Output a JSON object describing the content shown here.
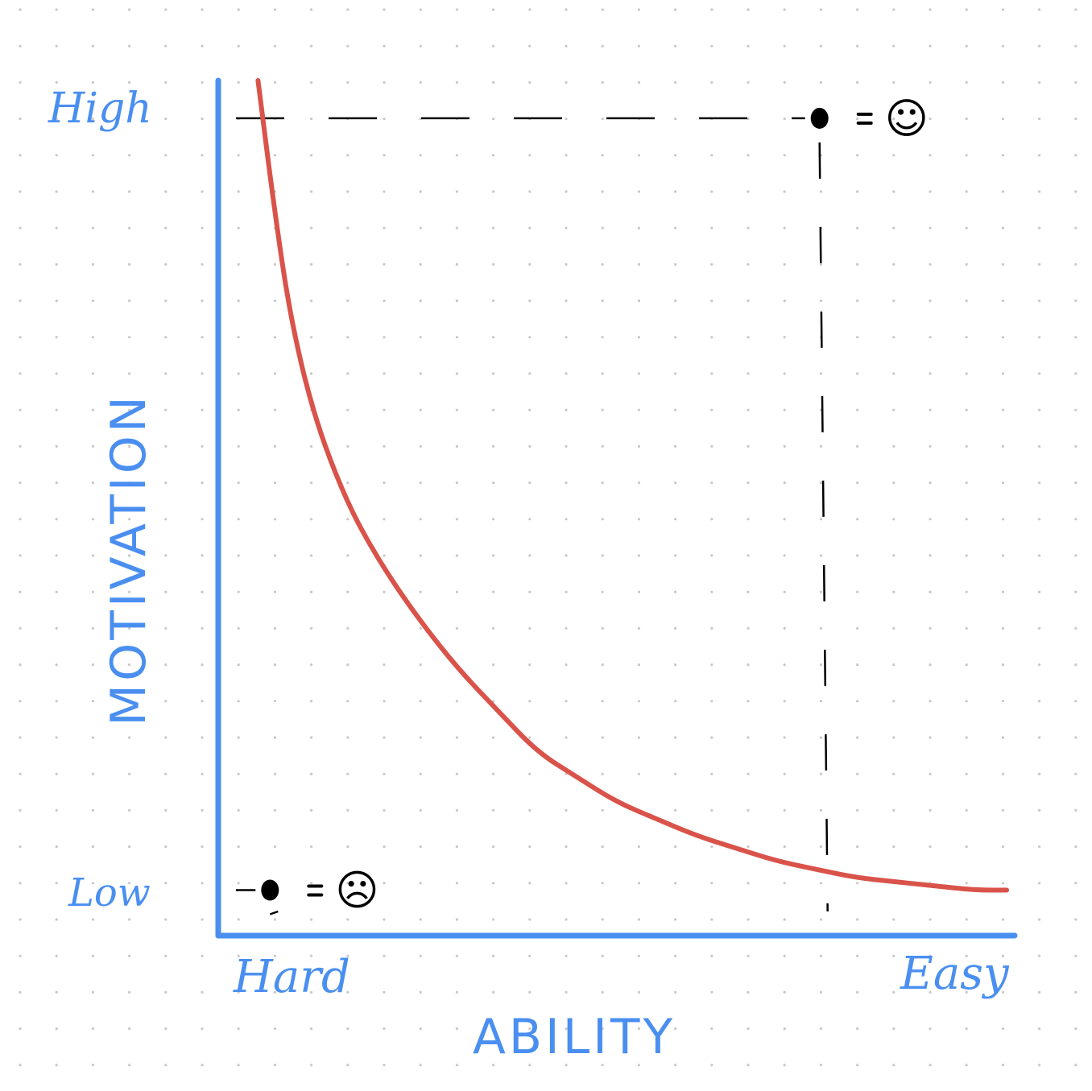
{
  "chart_data": {
    "type": "line",
    "xlabel": "ABILITY",
    "ylabel": "MOTIVATION",
    "x_tick_labels": [
      "Hard",
      "Easy"
    ],
    "y_tick_labels": [
      "Low",
      "High"
    ],
    "xlim": [
      0,
      1
    ],
    "ylim": [
      0,
      1
    ],
    "grid": "dotted",
    "series": [
      {
        "color": "#d9534a",
        "x": [
          0.05,
          0.07,
          0.09,
          0.12,
          0.16,
          0.2,
          0.25,
          0.3,
          0.35,
          0.4,
          0.45,
          0.5,
          0.55,
          0.6,
          0.65,
          0.7,
          0.75,
          0.8,
          0.85,
          0.9,
          0.95,
          0.99
        ],
        "y": [
          1.0,
          0.85,
          0.72,
          0.6,
          0.5,
          0.43,
          0.36,
          0.3,
          0.25,
          0.2,
          0.17,
          0.14,
          0.12,
          0.1,
          0.085,
          0.07,
          0.06,
          0.05,
          0.045,
          0.04,
          0.035,
          0.035
        ]
      }
    ],
    "annotations": [
      {
        "point": [
          0.755,
          0.955
        ],
        "label": "☺",
        "style": "dashed-guides"
      },
      {
        "point": [
          0.065,
          0.035
        ],
        "label": "☹",
        "style": "dashed-guides"
      }
    ],
    "colors": {
      "axis": "#4a8ff0",
      "curve": "#d9534a",
      "guide": "#000000",
      "grid_dot": "#c8c8c8"
    }
  }
}
